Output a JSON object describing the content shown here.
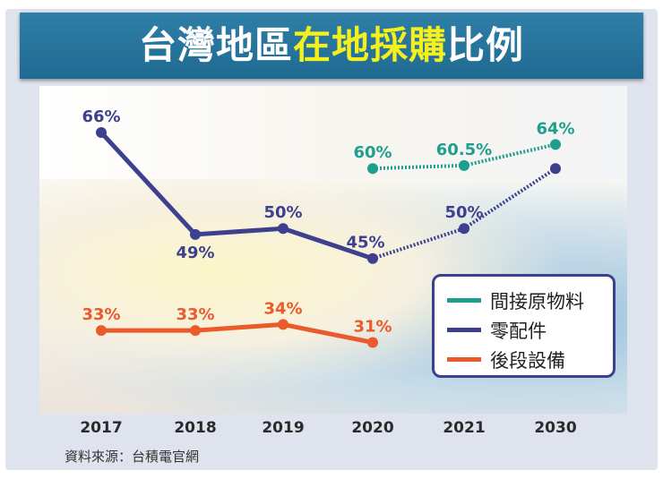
{
  "title": {
    "part1": "台灣地區",
    "highlight": "在地採購",
    "part2": "比例"
  },
  "source": "資料來源：台積電官網",
  "chart_data": {
    "type": "line",
    "categories": [
      "2017",
      "2018",
      "2019",
      "2020",
      "2021",
      "2030"
    ],
    "actual_through": "2020",
    "projection_style": "dotted",
    "legend_position": "bottom-right",
    "series": [
      {
        "name": "間接原物料",
        "color": "#1f9e8e",
        "values": [
          null,
          null,
          null,
          60,
          60.5,
          64
        ],
        "labels": [
          null,
          null,
          null,
          "60%",
          "60.5%",
          "64%"
        ]
      },
      {
        "name": "零配件",
        "color": "#3d3f8f",
        "values": [
          66,
          49,
          50,
          45,
          50,
          60
        ],
        "labels": [
          "66%",
          "49%",
          "50%",
          "45%",
          "50%",
          null
        ]
      },
      {
        "name": "後段設備",
        "color": "#ea5a2b",
        "values": [
          33,
          33,
          34,
          31,
          null,
          null
        ],
        "labels": [
          "33%",
          "33%",
          "34%",
          "31%",
          null,
          null
        ]
      }
    ]
  }
}
